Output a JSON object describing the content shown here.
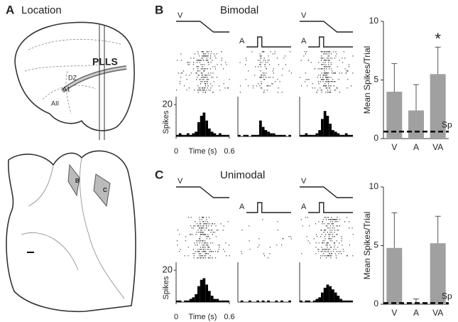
{
  "panels": {
    "A": {
      "letter": "A",
      "title": "Location",
      "labels": [
        "PLLS",
        "DZ",
        "A1",
        "AII",
        "B",
        "C"
      ]
    },
    "B": {
      "letter": "B",
      "title": "Bimodal"
    },
    "C": {
      "letter": "C",
      "title": "Unimodal"
    }
  },
  "chart_data": [
    {
      "type": "bar",
      "panel": "B",
      "ylabel": "Mean Spikes/Trial",
      "categories": [
        "V",
        "A",
        "VA"
      ],
      "values": [
        4.0,
        2.4,
        5.5
      ],
      "errors": [
        2.4,
        2.2,
        2.3
      ],
      "color": "#a0a0a0",
      "ylim": [
        0,
        10
      ],
      "yticks": [
        0,
        5,
        10
      ],
      "sp_level": 0.6,
      "sp_label": "Sp",
      "annotation": {
        "text": "*",
        "category": 2
      }
    },
    {
      "type": "bar",
      "panel": "C",
      "ylabel": "Mean Spikes/Trial",
      "categories": [
        "V",
        "A",
        "VA"
      ],
      "values": [
        4.8,
        0.1,
        5.2
      ],
      "errors": [
        3.0,
        0.35,
        2.3
      ],
      "color": "#a0a0a0",
      "ylim": [
        0,
        10
      ],
      "yticks": [
        0,
        5,
        10
      ],
      "sp_level": 0.1,
      "sp_label": "Sp"
    },
    {
      "type": "histogram",
      "panel": "B",
      "column": 0,
      "stimulus": [
        "V"
      ],
      "ylabel": "Spikes",
      "xlabel": "Time (s)",
      "bins": [
        0,
        0.03,
        0.06,
        0.09,
        0.12,
        0.15,
        0.18,
        0.21,
        0.24,
        0.27,
        0.3,
        0.33,
        0.36,
        0.39,
        0.42,
        0.45,
        0.48,
        0.51,
        0.54,
        0.57,
        0.6
      ],
      "values": [
        1,
        2,
        1,
        1,
        2,
        1,
        2,
        3,
        9,
        13,
        15,
        10,
        5,
        3,
        2,
        1,
        2,
        1,
        1,
        1
      ],
      "xlim": [
        0,
        0.6
      ],
      "xticks": [
        0,
        0.6
      ],
      "ylim": [
        0,
        25
      ],
      "yticks": [
        20
      ]
    },
    {
      "type": "histogram",
      "panel": "B",
      "column": 1,
      "stimulus": [
        "A"
      ],
      "bins": [
        0,
        0.03,
        0.06,
        0.09,
        0.12,
        0.15,
        0.18,
        0.21,
        0.24,
        0.27,
        0.3,
        0.33,
        0.36,
        0.39,
        0.42,
        0.45,
        0.48,
        0.51,
        0.54,
        0.57,
        0.6
      ],
      "values": [
        1,
        0,
        1,
        1,
        0,
        1,
        1,
        1,
        10,
        6,
        4,
        3,
        2,
        2,
        1,
        1,
        1,
        1,
        0,
        1
      ],
      "xlim": [
        0,
        0.6
      ],
      "ylim": [
        0,
        25
      ]
    },
    {
      "type": "histogram",
      "panel": "B",
      "column": 2,
      "stimulus": [
        "V",
        "A"
      ],
      "bins": [
        0,
        0.03,
        0.06,
        0.09,
        0.12,
        0.15,
        0.18,
        0.21,
        0.24,
        0.27,
        0.3,
        0.33,
        0.36,
        0.39,
        0.42,
        0.45,
        0.48,
        0.51,
        0.54,
        0.57,
        0.6
      ],
      "values": [
        1,
        1,
        2,
        1,
        1,
        1,
        2,
        4,
        11,
        16,
        13,
        8,
        4,
        3,
        2,
        1,
        1,
        2,
        1,
        1
      ],
      "xlim": [
        0,
        0.6
      ],
      "ylim": [
        0,
        25
      ]
    },
    {
      "type": "histogram",
      "panel": "C",
      "column": 0,
      "stimulus": [
        "V"
      ],
      "ylabel": "Spikes",
      "xlabel": "Time (s)",
      "bins": [
        0,
        0.03,
        0.06,
        0.09,
        0.12,
        0.15,
        0.18,
        0.21,
        0.24,
        0.27,
        0.3,
        0.33,
        0.36,
        0.39,
        0.42,
        0.45,
        0.48,
        0.51,
        0.54,
        0.57,
        0.6
      ],
      "values": [
        1,
        1,
        0,
        1,
        1,
        2,
        3,
        5,
        10,
        14,
        15,
        11,
        7,
        4,
        2,
        2,
        1,
        1,
        1,
        1
      ],
      "xlim": [
        0,
        0.6
      ],
      "xticks": [
        0,
        0.6
      ],
      "ylim": [
        0,
        25
      ],
      "yticks": [
        20
      ]
    },
    {
      "type": "histogram",
      "panel": "C",
      "column": 1,
      "stimulus": [
        "A"
      ],
      "bins": [
        0,
        0.03,
        0.06,
        0.09,
        0.12,
        0.15,
        0.18,
        0.21,
        0.24,
        0.27,
        0.3,
        0.33,
        0.36,
        0.39,
        0.42,
        0.45,
        0.48,
        0.51,
        0.54,
        0.57,
        0.6
      ],
      "values": [
        0,
        1,
        0,
        0,
        1,
        0,
        0,
        1,
        0,
        1,
        0,
        1,
        0,
        0,
        1,
        0,
        1,
        0,
        0,
        1
      ],
      "xlim": [
        0,
        0.6
      ],
      "ylim": [
        0,
        25
      ]
    },
    {
      "type": "histogram",
      "panel": "C",
      "column": 2,
      "stimulus": [
        "V",
        "A"
      ],
      "bins": [
        0,
        0.03,
        0.06,
        0.09,
        0.12,
        0.15,
        0.18,
        0.21,
        0.24,
        0.27,
        0.3,
        0.33,
        0.36,
        0.39,
        0.42,
        0.45,
        0.48,
        0.51,
        0.54,
        0.57,
        0.6
      ],
      "values": [
        1,
        0,
        1,
        1,
        0,
        1,
        2,
        3,
        6,
        9,
        11,
        10,
        8,
        6,
        4,
        2,
        1,
        1,
        1,
        1
      ],
      "xlim": [
        0,
        0.6
      ],
      "ylim": [
        0,
        25
      ]
    }
  ]
}
